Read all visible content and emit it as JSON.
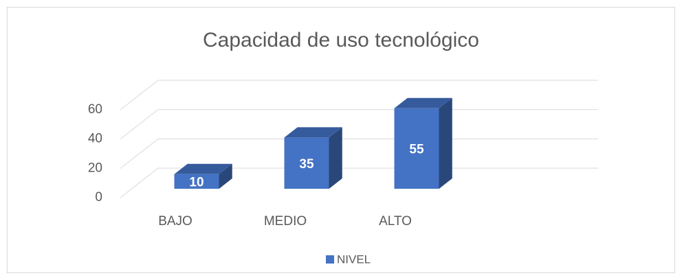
{
  "chart_data": {
    "type": "bar3d",
    "title": "Capacidad de uso tecnológico",
    "categories": [
      "BAJO",
      "MEDIO",
      "ALTO"
    ],
    "series": [
      {
        "name": "NIVEL",
        "color": "#4472c4",
        "values": [
          10,
          35,
          55
        ]
      }
    ],
    "ylim": [
      0,
      60
    ],
    "yticks": [
      0,
      20,
      40,
      60
    ],
    "grid": true,
    "legend": "bottom"
  }
}
